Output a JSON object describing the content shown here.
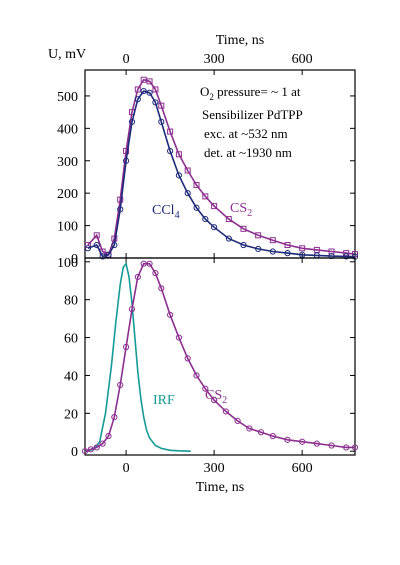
{
  "colors": {
    "cs2": "#8b2f8f",
    "ccl4": "#1f2a7a",
    "irf": "#159a96",
    "axis": "#000000"
  },
  "chart_data": [
    {
      "type": "line",
      "title": "",
      "xlabel": "Time, ns",
      "ylabel": "U, mV",
      "xlim": [
        -140,
        780
      ],
      "ylim": [
        0,
        580
      ],
      "xticks": [
        0,
        300,
        600
      ],
      "yticks": [
        0,
        100,
        200,
        300,
        400,
        500
      ],
      "xtick_labels": [
        "0",
        "300",
        "600"
      ],
      "ytick_labels": [
        "0",
        "100",
        "200",
        "300",
        "400",
        "500"
      ],
      "annotation_lines": [
        {
          "prefix": "O",
          "sub": "2",
          "suffix": " pressure= ~ 1 at"
        },
        {
          "prefix": "Sensibilizer PdTPP",
          "sub": "",
          "suffix": ""
        },
        {
          "prefix": "exc. at ~532 nm",
          "sub": "",
          "suffix": ""
        },
        {
          "prefix": "det. at ~1930 nm",
          "sub": "",
          "suffix": ""
        }
      ],
      "series": [
        {
          "name": "CS2",
          "label_main": "CS",
          "label_sub": "2",
          "color": "#8b2f8f",
          "marker": "square",
          "x": [
            -130,
            -100,
            -80,
            -60,
            -40,
            -20,
            0,
            20,
            40,
            60,
            80,
            100,
            120,
            150,
            180,
            210,
            240,
            270,
            300,
            350,
            400,
            450,
            500,
            550,
            600,
            650,
            700,
            750,
            780
          ],
          "y": [
            40,
            70,
            20,
            10,
            60,
            180,
            330,
            450,
            520,
            550,
            545,
            520,
            470,
            390,
            320,
            270,
            225,
            190,
            160,
            120,
            90,
            70,
            55,
            40,
            30,
            25,
            20,
            15,
            12
          ]
        },
        {
          "name": "CCl4",
          "label_main": "CCl",
          "label_sub": "4",
          "color": "#1f2a7a",
          "marker": "circle",
          "x": [
            -130,
            -100,
            -80,
            -60,
            -40,
            -20,
            0,
            20,
            40,
            60,
            80,
            100,
            120,
            150,
            180,
            210,
            240,
            270,
            300,
            350,
            400,
            450,
            500,
            550,
            600,
            650,
            700,
            750,
            780
          ],
          "y": [
            30,
            40,
            5,
            10,
            40,
            150,
            300,
            420,
            490,
            515,
            510,
            480,
            420,
            330,
            255,
            200,
            155,
            120,
            95,
            60,
            40,
            28,
            20,
            15,
            10,
            8,
            6,
            5,
            4
          ]
        }
      ]
    },
    {
      "type": "line",
      "title": "",
      "xlabel": "Time, ns",
      "ylabel": "",
      "xlim": [
        -140,
        780
      ],
      "ylim": [
        -2,
        102
      ],
      "xticks": [
        0,
        300,
        600
      ],
      "yticks": [
        0,
        20,
        40,
        60,
        80,
        100
      ],
      "xtick_labels": [
        "0",
        "300",
        "600"
      ],
      "ytick_labels": [
        "0",
        "20",
        "40",
        "60",
        "80",
        "100"
      ],
      "series": [
        {
          "name": "IRF",
          "label_main": "IRF",
          "label_sub": "",
          "color": "#159a96",
          "marker": "none",
          "x": [
            -140,
            -110,
            -90,
            -70,
            -50,
            -35,
            -20,
            -10,
            0,
            10,
            20,
            30,
            40,
            50,
            60,
            70,
            80,
            100,
            120,
            150,
            180,
            220
          ],
          "y": [
            0,
            1,
            5,
            20,
            45,
            68,
            88,
            97,
            99,
            92,
            78,
            60,
            42,
            28,
            18,
            11,
            7,
            3,
            1.5,
            0.5,
            0.2,
            0
          ]
        },
        {
          "name": "CS2",
          "label_main": "CS",
          "label_sub": "2",
          "color": "#8b2f8f",
          "marker": "circle",
          "x": [
            -140,
            -120,
            -100,
            -80,
            -60,
            -40,
            -20,
            0,
            20,
            40,
            60,
            80,
            100,
            120,
            150,
            180,
            210,
            240,
            270,
            300,
            340,
            380,
            420,
            460,
            500,
            550,
            600,
            650,
            700,
            750,
            780
          ],
          "y": [
            0,
            1,
            2,
            4,
            8,
            18,
            35,
            55,
            75,
            92,
            99,
            99,
            94,
            86,
            72,
            60,
            49,
            40,
            33,
            27,
            21,
            16,
            12,
            10,
            8,
            6,
            5,
            4,
            3,
            2,
            2
          ]
        }
      ]
    }
  ]
}
